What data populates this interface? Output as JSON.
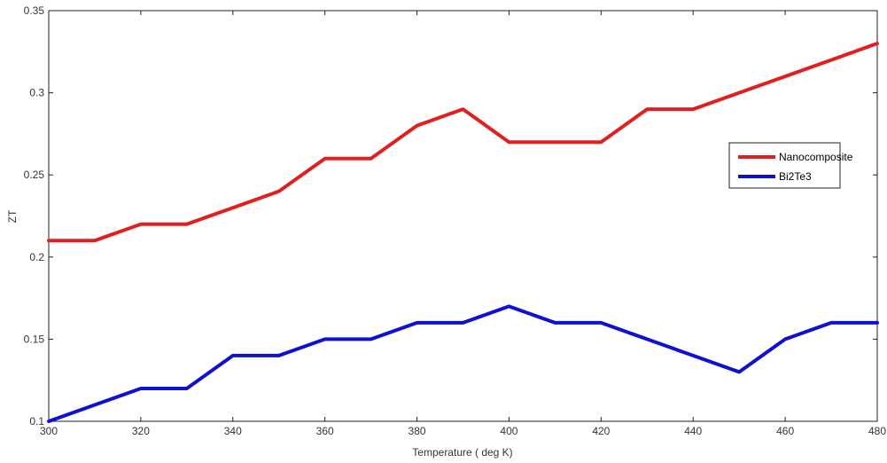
{
  "chart_data": {
    "type": "line",
    "title": "",
    "xlabel": "Temperature ( deg K)",
    "ylabel": "ZT",
    "xlim": [
      300,
      480
    ],
    "ylim": [
      0.1,
      0.35
    ],
    "xticks": [
      300,
      320,
      340,
      360,
      380,
      400,
      420,
      440,
      460,
      480
    ],
    "yticks": [
      0.1,
      0.15,
      0.2,
      0.25,
      0.3,
      0.35
    ],
    "grid": false,
    "legend_position": "right",
    "x": [
      300,
      310,
      320,
      330,
      340,
      350,
      360,
      370,
      380,
      390,
      400,
      410,
      420,
      430,
      440,
      450,
      460,
      470,
      480
    ],
    "series": [
      {
        "name": "Nanocomposite",
        "color": "#e02020",
        "values": [
          0.21,
          0.21,
          0.22,
          0.22,
          0.23,
          0.24,
          0.26,
          0.26,
          0.28,
          0.29,
          0.27,
          0.27,
          0.27,
          0.29,
          0.29,
          0.3,
          0.31,
          0.32,
          0.33
        ]
      },
      {
        "name": "Bi2Te3",
        "color": "#1010d0",
        "values": [
          0.1,
          0.11,
          0.12,
          0.12,
          0.14,
          0.14,
          0.15,
          0.15,
          0.16,
          0.16,
          0.17,
          0.16,
          0.16,
          0.15,
          0.14,
          0.13,
          0.15,
          0.16,
          0.16
        ]
      }
    ]
  }
}
